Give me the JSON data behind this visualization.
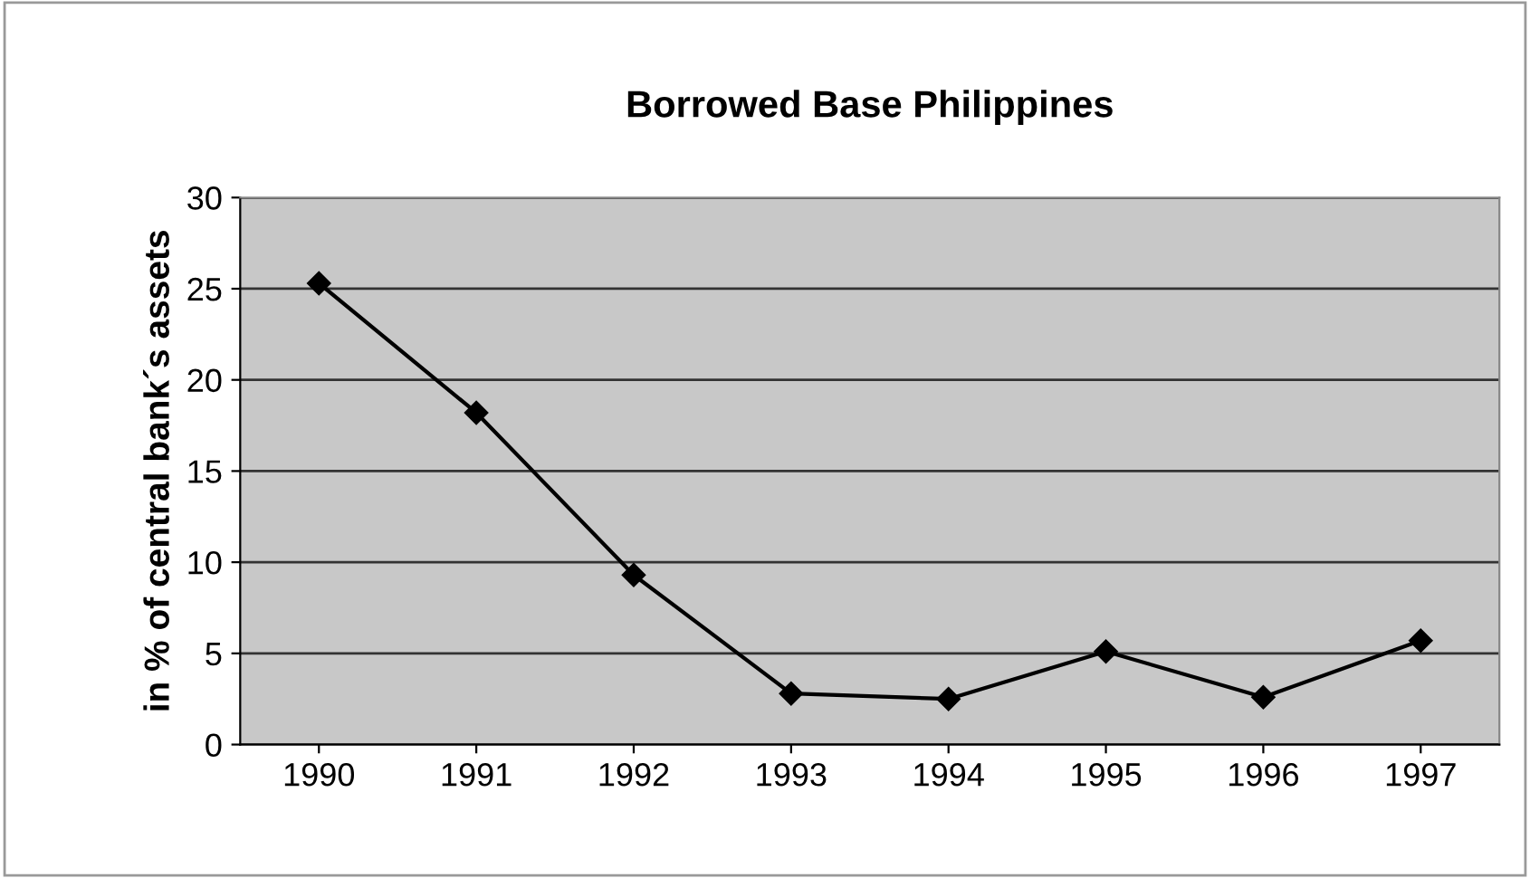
{
  "chart_data": {
    "type": "line",
    "title": "Borrowed Base Philippines",
    "ylabel": "in % of central bank´s assets",
    "categories": [
      "1990",
      "1991",
      "1992",
      "1993",
      "1994",
      "1995",
      "1996",
      "1997"
    ],
    "series": [
      {
        "color": "#000000",
        "values": [
          25.3,
          18.2,
          9.3,
          2.8,
          2.5,
          5.1,
          2.6,
          5.7
        ]
      }
    ],
    "ylim": [
      0,
      30
    ],
    "yticks": [
      0,
      5,
      10,
      15,
      20,
      25,
      30
    ],
    "grid": "y",
    "marker": "diamond",
    "line_style": "solid",
    "legend": false
  }
}
